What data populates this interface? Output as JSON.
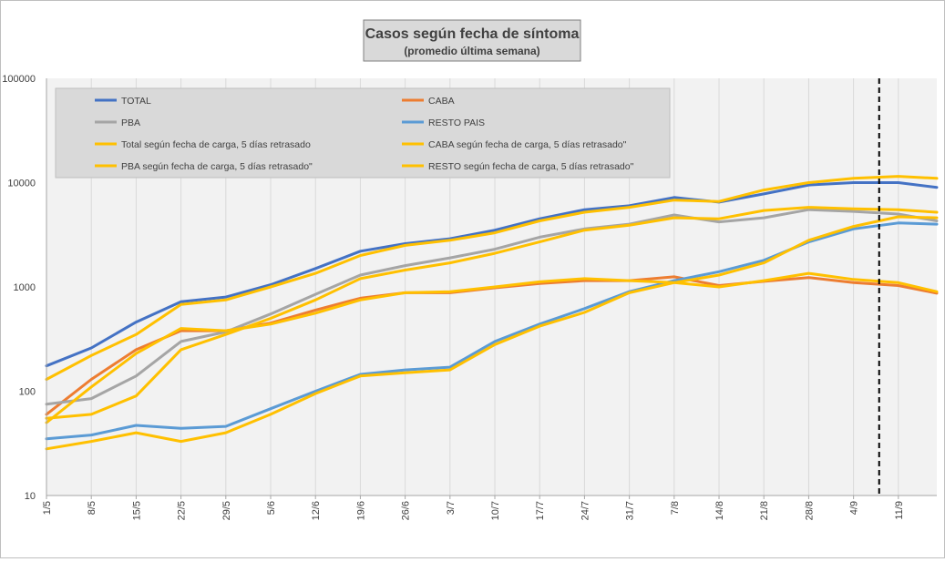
{
  "chart_data": {
    "type": "line",
    "title": "Casos según fecha de síntoma",
    "subtitle": "(promedio última semana)",
    "y_scale": "log",
    "ylim": [
      10,
      100000
    ],
    "y_ticks": [
      "10",
      "100",
      "1000",
      "10000",
      "100000"
    ],
    "x_range": [
      "1/5",
      "17/9"
    ],
    "x_ticks": [
      "1/5",
      "8/5",
      "15/5",
      "22/5",
      "29/5",
      "5/6",
      "12/6",
      "19/6",
      "26/6",
      "3/7",
      "10/7",
      "17/7",
      "24/7",
      "31/7",
      "7/8",
      "14/8",
      "21/8",
      "28/8",
      "4/9",
      "11/9"
    ],
    "vertical_marker": {
      "x": "8/9",
      "style": "dashed",
      "color": "#000000"
    },
    "grid": "vertical",
    "plot_background": "#f2f2f2",
    "legend": {
      "placement": "top-left",
      "background": "#d9d9d9"
    },
    "series": [
      {
        "name": "TOTAL",
        "color": "#4472c4",
        "x": [
          "1/5",
          "8/5",
          "15/5",
          "22/5",
          "29/5",
          "5/6",
          "12/6",
          "19/6",
          "26/6",
          "3/7",
          "10/7",
          "17/7",
          "24/7",
          "31/7",
          "7/8",
          "14/8",
          "21/8",
          "28/8",
          "4/9",
          "11/9",
          "17/9"
        ],
        "y": [
          175,
          260,
          460,
          720,
          800,
          1050,
          1500,
          2200,
          2600,
          2900,
          3500,
          4500,
          5500,
          6000,
          7200,
          6500,
          7800,
          9500,
          10000,
          10000,
          9000
        ]
      },
      {
        "name": "CABA",
        "color": "#ed7d31",
        "x": [
          "1/5",
          "8/5",
          "15/5",
          "22/5",
          "29/5",
          "5/6",
          "12/6",
          "19/6",
          "26/6",
          "3/7",
          "10/7",
          "17/7",
          "24/7",
          "31/7",
          "7/8",
          "14/8",
          "21/8",
          "28/8",
          "4/9",
          "11/9",
          "17/9"
        ],
        "y": [
          60,
          130,
          250,
          380,
          380,
          450,
          600,
          780,
          880,
          880,
          980,
          1080,
          1150,
          1150,
          1250,
          1030,
          1130,
          1230,
          1100,
          1030,
          870
        ]
      },
      {
        "name": "PBA",
        "color": "#a5a5a5",
        "x": [
          "1/5",
          "8/5",
          "15/5",
          "22/5",
          "29/5",
          "5/6",
          "12/6",
          "19/6",
          "26/6",
          "3/7",
          "10/7",
          "17/7",
          "24/7",
          "31/7",
          "7/8",
          "14/8",
          "21/8",
          "28/8",
          "4/9",
          "11/9",
          "17/9"
        ],
        "y": [
          75,
          85,
          140,
          300,
          370,
          550,
          850,
          1300,
          1600,
          1900,
          2300,
          3000,
          3600,
          4000,
          4900,
          4200,
          4600,
          5500,
          5300,
          5000,
          4300
        ]
      },
      {
        "name": "RESTO PAIS",
        "color": "#5b9bd5",
        "x": [
          "1/5",
          "8/5",
          "15/5",
          "22/5",
          "29/5",
          "5/6",
          "12/6",
          "19/6",
          "26/6",
          "3/7",
          "10/7",
          "17/7",
          "24/7",
          "31/7",
          "7/8",
          "14/8",
          "21/8",
          "28/8",
          "4/9",
          "11/9",
          "17/9"
        ],
        "y": [
          35,
          38,
          47,
          44,
          46,
          68,
          100,
          145,
          160,
          170,
          300,
          440,
          620,
          900,
          1150,
          1400,
          1800,
          2700,
          3600,
          4100,
          4000
        ]
      },
      {
        "name": "Total según fecha de carga, 5 días retrasado",
        "color": "#ffc000",
        "x": [
          "1/5",
          "8/5",
          "15/5",
          "22/5",
          "29/5",
          "5/6",
          "12/6",
          "19/6",
          "26/6",
          "3/7",
          "10/7",
          "17/7",
          "24/7",
          "31/7",
          "7/8",
          "14/8",
          "21/8",
          "28/8",
          "4/9",
          "11/9",
          "17/9"
        ],
        "y": [
          130,
          220,
          350,
          680,
          750,
          1000,
          1350,
          2000,
          2500,
          2800,
          3300,
          4300,
          5200,
          5800,
          6800,
          6600,
          8500,
          10000,
          11000,
          11500,
          11000
        ]
      },
      {
        "name": "CABA según fecha de carga, 5 días retrasado\"",
        "color": "#ffc000",
        "x": [
          "1/5",
          "8/5",
          "15/5",
          "22/5",
          "29/5",
          "5/6",
          "12/6",
          "19/6",
          "26/6",
          "3/7",
          "10/7",
          "17/7",
          "24/7",
          "31/7",
          "7/8",
          "14/8",
          "21/8",
          "28/8",
          "4/9",
          "11/9",
          "17/9"
        ],
        "y": [
          50,
          110,
          230,
          400,
          380,
          440,
          560,
          750,
          880,
          900,
          1000,
          1120,
          1200,
          1150,
          1100,
          1000,
          1150,
          1350,
          1180,
          1100,
          900
        ]
      },
      {
        "name": "PBA según fecha de carga, 5 días retrasado\"",
        "color": "#ffc000",
        "x": [
          "1/5",
          "8/5",
          "15/5",
          "22/5",
          "29/5",
          "5/6",
          "12/6",
          "19/6",
          "26/6",
          "3/7",
          "10/7",
          "17/7",
          "24/7",
          "31/7",
          "7/8",
          "14/8",
          "21/8",
          "28/8",
          "4/9",
          "11/9",
          "17/9"
        ],
        "y": [
          55,
          60,
          90,
          250,
          350,
          500,
          750,
          1200,
          1450,
          1700,
          2100,
          2700,
          3500,
          3900,
          4600,
          4500,
          5400,
          5800,
          5600,
          5500,
          5200
        ]
      },
      {
        "name": "RESTO según fecha de carga, 5 días retrasado\"",
        "color": "#ffc000",
        "x": [
          "1/5",
          "8/5",
          "15/5",
          "22/5",
          "29/5",
          "5/6",
          "12/6",
          "19/6",
          "26/6",
          "3/7",
          "10/7",
          "17/7",
          "24/7",
          "31/7",
          "7/8",
          "14/8",
          "21/8",
          "28/8",
          "4/9",
          "11/9",
          "17/9"
        ],
        "y": [
          28,
          33,
          40,
          33,
          40,
          60,
          95,
          140,
          150,
          160,
          280,
          420,
          570,
          880,
          1100,
          1300,
          1700,
          2800,
          3800,
          4700,
          4600
        ]
      }
    ]
  }
}
